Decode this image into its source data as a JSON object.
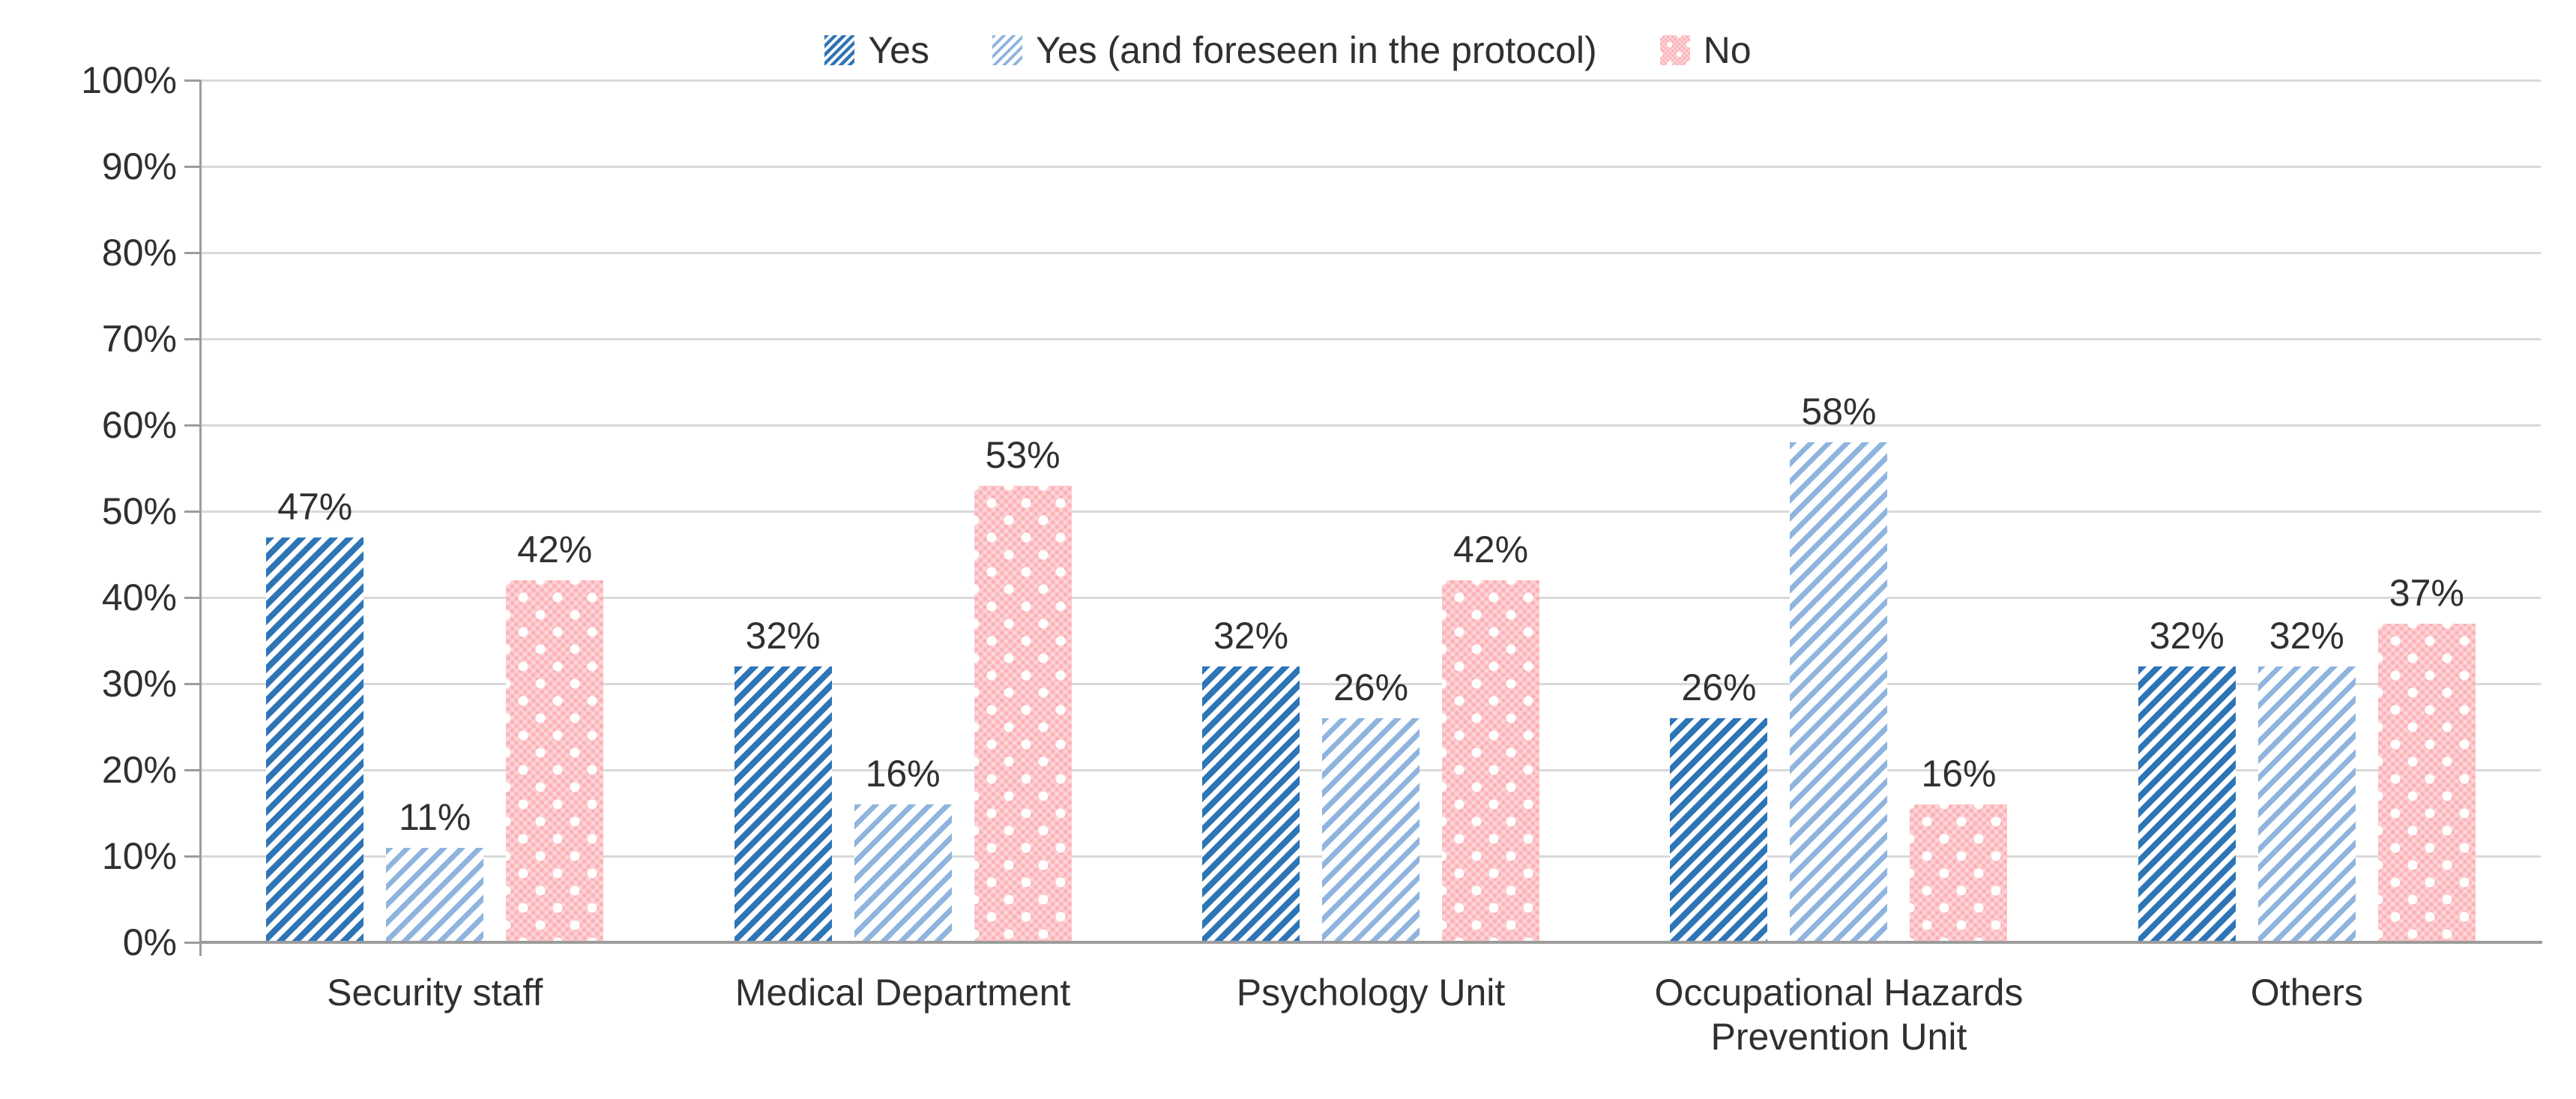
{
  "chart_data": {
    "type": "bar",
    "categories": [
      "Security staff",
      "Medical Department",
      "Psychology Unit",
      "Occupational Hazards Prevention Unit",
      "Others"
    ],
    "series": [
      {
        "name": "Yes",
        "color": "#2E75B6",
        "pattern": "diagonal-stripes-dense",
        "values": [
          47,
          32,
          32,
          26,
          32
        ],
        "data_labels": [
          "47%",
          "32%",
          "32%",
          "26%",
          "32%"
        ]
      },
      {
        "name": "Yes (and foreseen in the protocol)",
        "color": "#8FB4DE",
        "pattern": "diagonal-stripes-light",
        "values": [
          11,
          16,
          26,
          58,
          32
        ],
        "data_labels": [
          "11%",
          "16%",
          "26%",
          "58%",
          "32%"
        ]
      },
      {
        "name": "No",
        "color": "#FBAEB3",
        "pattern": "dotted-diamond",
        "values": [
          42,
          53,
          42,
          16,
          37
        ],
        "data_labels": [
          "42%",
          "53%",
          "42%",
          "16%",
          "37%"
        ]
      }
    ],
    "yticks": [
      "0%",
      "10%",
      "20%",
      "30%",
      "40%",
      "50%",
      "60%",
      "70%",
      "80%",
      "90%",
      "100%"
    ],
    "ylim": [
      0,
      100
    ],
    "grid": true,
    "legend_position": "top-center",
    "colors": {
      "gridline": "#D9D9D9",
      "axis": "#9C9C9C",
      "text": "#303030"
    }
  }
}
